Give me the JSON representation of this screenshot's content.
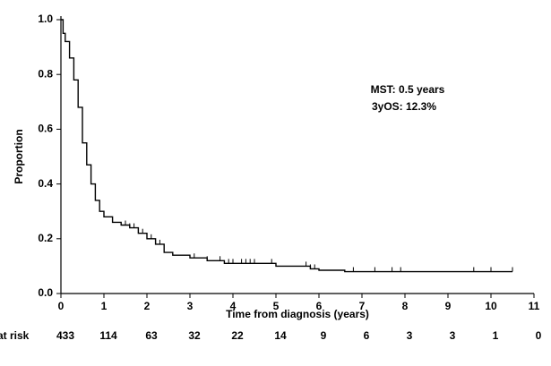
{
  "chart_data": {
    "type": "step",
    "x_label": "Time from diagnosis (years)",
    "y_label": "Proportion",
    "annotations": [
      "MST: 0.5 years",
      "3yOS: 12.3%"
    ],
    "xlim": [
      0,
      11
    ],
    "xticks": [
      0,
      1,
      2,
      3,
      4,
      5,
      6,
      7,
      8,
      9,
      10,
      11
    ],
    "ylim": [
      0,
      1
    ],
    "yticks": [
      {
        "value": 0,
        "label": "0.0"
      },
      0.2,
      0.4,
      0.6,
      0.8,
      {
        "value": 1,
        "label": "1.0"
      }
    ],
    "grid": false,
    "x": [
      0,
      0.05,
      0.1,
      0.2,
      0.3,
      0.4,
      0.5,
      0.6,
      0.7,
      0.8,
      0.9,
      1.0,
      1.2,
      1.4,
      1.6,
      1.8,
      2.0,
      2.2,
      2.4,
      2.6,
      3.0,
      3.4,
      3.8,
      5.0,
      5.8,
      6.0,
      6.6,
      10.5
    ],
    "series": [
      {
        "color": "#000000",
        "values": [
          1.0,
          0.95,
          0.92,
          0.86,
          0.78,
          0.68,
          0.55,
          0.47,
          0.4,
          0.34,
          0.3,
          0.28,
          0.26,
          0.25,
          0.24,
          0.22,
          0.2,
          0.18,
          0.15,
          0.14,
          0.13,
          0.12,
          0.11,
          0.1,
          0.09,
          0.085,
          0.08,
          0.08
        ]
      }
    ],
    "censored": {
      "x": [
        1.5,
        1.6,
        1.7,
        1.8,
        1.9,
        2.0,
        2.1,
        2.2,
        2.3,
        3.1,
        3.4,
        3.7,
        3.9,
        4.0,
        4.2,
        4.3,
        4.4,
        4.5,
        4.9,
        5.7,
        5.8,
        5.9,
        6.8,
        7.3,
        7.7,
        7.9,
        9.6,
        10.0,
        10.5
      ],
      "values": [
        0.25,
        0.24,
        0.24,
        0.22,
        0.22,
        0.2,
        0.2,
        0.18,
        0.18,
        0.13,
        0.12,
        0.12,
        0.11,
        0.11,
        0.11,
        0.11,
        0.11,
        0.11,
        0.11,
        0.1,
        0.09,
        0.09,
        0.08,
        0.08,
        0.08,
        0.08,
        0.08,
        0.08,
        0.08
      ]
    },
    "at_risk_label": "at risk",
    "at_risk": [
      433,
      114,
      63,
      32,
      22,
      14,
      9,
      6,
      3,
      3,
      1,
      0
    ]
  }
}
